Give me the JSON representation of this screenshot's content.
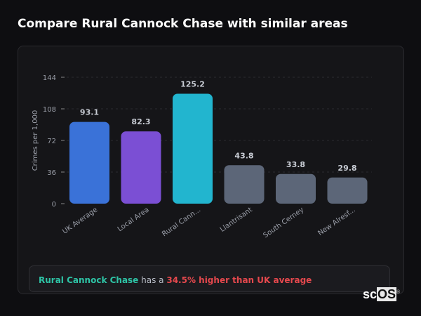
{
  "header": {
    "title": "Compare Rural Cannock Chase with similar areas"
  },
  "chart_data": {
    "type": "bar",
    "ylabel": "Crimes per 1,000",
    "ylim": [
      0,
      144
    ],
    "yticks": [
      0,
      36,
      72,
      108,
      144
    ],
    "grid": true,
    "categories": [
      "UK Average",
      "Local Area",
      "Rural Cann...",
      "Llantrisant",
      "South Cerney",
      "New Alresf..."
    ],
    "values": [
      93.1,
      82.3,
      125.2,
      43.8,
      33.8,
      29.8
    ],
    "value_labels": [
      "93.1",
      "82.3",
      "125.2",
      "43.8",
      "33.8",
      "29.8"
    ],
    "colors": [
      "#3a72d8",
      "#7b4fd4",
      "#22b5cf",
      "#5c6678",
      "#5c6678",
      "#5c6678"
    ]
  },
  "summary": {
    "area": "Rural Cannock Chase",
    "middle": " has a ",
    "highlight": "34.5% higher than UK average"
  },
  "logo": {
    "text_sc": "sc",
    "text_os": "OS",
    "mark": "®"
  }
}
